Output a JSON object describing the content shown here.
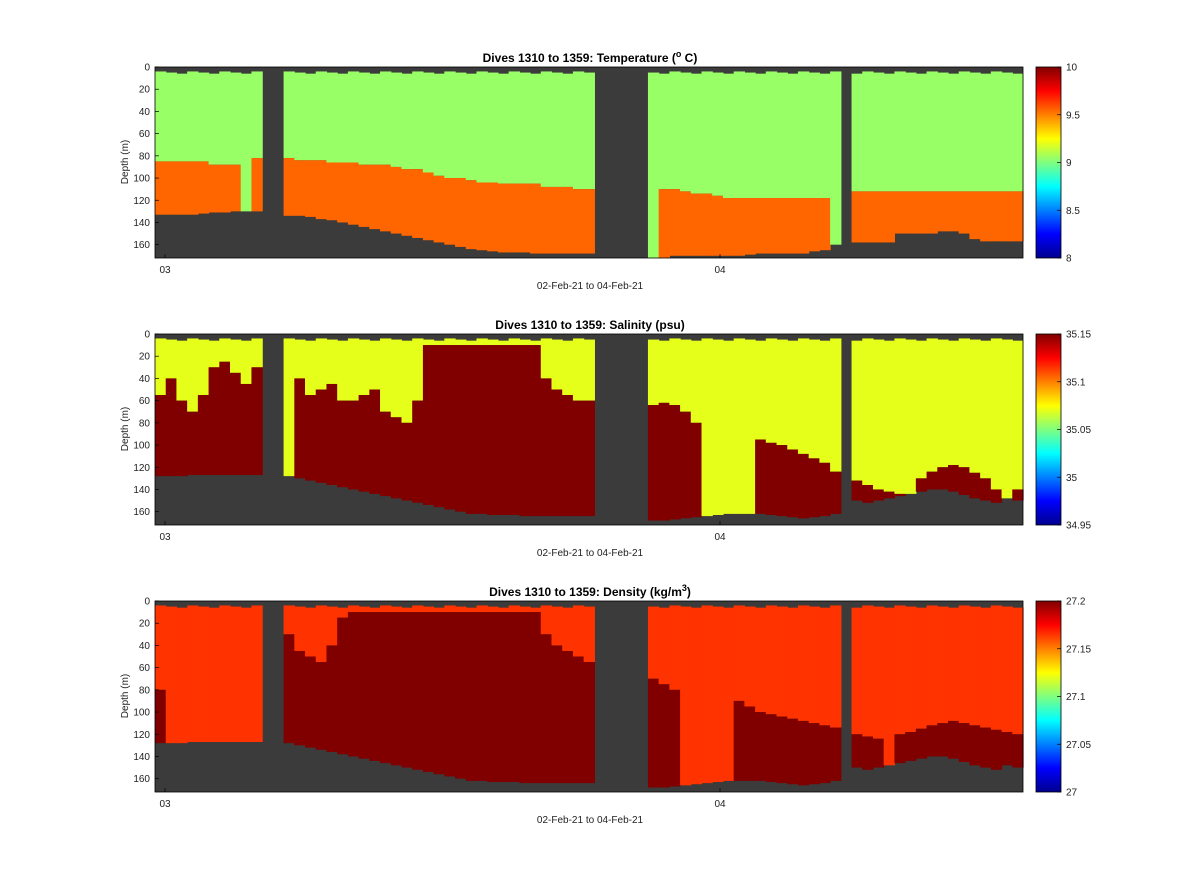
{
  "chart_data": [
    {
      "type": "heatmap",
      "title_text": "Dives 1310 to 1359: Temperature (",
      "title_sup": "o",
      "title_after": " C)",
      "xlabel": "02-Feb-21 to 04-Feb-21",
      "ylabel": "Depth (m)",
      "ylim": [
        0,
        172
      ],
      "y_ticks": [
        "0",
        "20",
        "40",
        "60",
        "80",
        "100",
        "120",
        "140",
        "160"
      ],
      "x_ticks": [
        "03",
        "04"
      ],
      "colorbar": {
        "range": [
          8,
          10
        ],
        "ticks": [
          "10",
          "9.5",
          "9",
          "8.5",
          "8"
        ]
      },
      "surface_value": 9.05,
      "bottom_value": 9.55,
      "cline_depth": [
        85,
        85,
        85,
        88,
        88,
        0,
        82,
        82,
        82,
        84,
        84,
        86,
        86,
        88,
        88,
        90,
        92,
        95,
        98,
        100,
        102,
        104,
        105,
        105,
        105,
        108,
        108,
        110,
        110,
        110,
        0,
        0,
        0,
        110,
        112,
        114,
        116,
        118,
        118,
        118,
        118,
        118,
        118,
        118,
        0,
        112,
        112,
        112,
        112,
        112,
        112,
        112,
        112,
        112,
        112,
        112,
        112
      ],
      "max_depth": [
        133,
        133,
        133,
        133,
        132,
        131,
        131,
        130,
        130,
        130,
        0,
        0,
        134,
        134,
        135,
        137,
        138,
        140,
        142,
        144,
        146,
        148,
        150,
        152,
        154,
        156,
        158,
        160,
        162,
        164,
        165,
        166,
        167,
        167,
        167,
        168,
        168,
        168,
        168,
        168,
        168,
        0,
        0,
        0,
        0,
        0,
        172,
        172,
        170,
        170,
        170,
        170,
        170,
        170,
        170,
        169,
        168,
        168,
        168,
        168,
        168,
        166,
        165,
        160,
        0,
        158,
        158,
        158,
        158,
        150,
        150,
        150,
        150,
        148,
        148,
        150,
        155,
        157,
        157,
        157,
        157
      ]
    },
    {
      "type": "heatmap",
      "title_text": "Dives 1310 to 1359: Salinity (psu)",
      "title_sup": "",
      "title_after": "",
      "xlabel": "02-Feb-21 to 04-Feb-21",
      "ylabel": "Depth (m)",
      "ylim": [
        0,
        172
      ],
      "y_ticks": [
        "0",
        "20",
        "40",
        "60",
        "80",
        "100",
        "120",
        "140",
        "160"
      ],
      "x_ticks": [
        "03",
        "04"
      ],
      "colorbar": {
        "range": [
          34.95,
          35.15
        ],
        "ticks": [
          "35.15",
          "35.1",
          "35.05",
          "35",
          "34.95"
        ]
      },
      "surface_value": 35.07,
      "bottom_value": 35.15,
      "cline_depth": [
        55,
        40,
        60,
        70,
        55,
        30,
        25,
        35,
        45,
        40,
        30,
        30,
        0,
        0,
        40,
        55,
        50,
        45,
        60,
        65,
        60,
        55,
        50,
        70,
        75,
        80,
        60,
        10,
        10,
        10,
        10,
        10,
        10,
        10,
        10,
        10,
        10,
        10,
        10,
        30,
        40,
        50,
        55,
        60,
        60,
        65,
        70,
        75,
        70,
        68,
        66,
        64,
        62,
        64,
        70,
        80,
        0,
        0,
        0,
        0,
        0,
        0,
        95,
        98,
        100,
        104,
        108,
        112,
        116,
        120,
        124,
        128,
        132,
        136,
        140,
        142,
        144,
        0,
        130,
        128,
        124,
        120,
        118,
        120,
        125,
        130,
        140,
        150,
        140,
        120
      ],
      "max_depth": [
        128,
        128,
        128,
        127,
        127,
        127,
        127,
        127,
        127,
        127,
        0,
        0,
        128,
        130,
        132,
        134,
        136,
        138,
        140,
        142,
        144,
        146,
        148,
        150,
        152,
        154,
        156,
        158,
        160,
        162,
        162,
        163,
        163,
        163,
        164,
        164,
        164,
        164,
        164,
        164,
        164,
        0,
        0,
        0,
        0,
        0,
        168,
        168,
        167,
        166,
        165,
        164,
        163,
        162,
        162,
        162,
        162,
        163,
        164,
        165,
        166,
        165,
        164,
        162,
        0,
        150,
        152,
        150,
        148,
        146,
        144,
        142,
        140,
        140,
        142,
        145,
        148,
        150,
        152,
        148,
        150
      ]
    },
    {
      "type": "heatmap",
      "title_text": "Dives 1310 to 1359: Density (kg/m",
      "title_sup": "3",
      "title_after": ")",
      "xlabel": "02-Feb-21 to 04-Feb-21",
      "ylabel": "Depth (m)",
      "ylim": [
        0,
        172
      ],
      "y_ticks": [
        "0",
        "20",
        "40",
        "60",
        "80",
        "100",
        "120",
        "140",
        "160"
      ],
      "x_ticks": [
        "03",
        "04"
      ],
      "colorbar": {
        "range": [
          27,
          27.2
        ],
        "ticks": [
          "27.2",
          "27.15",
          "27.1",
          "27.05",
          "27"
        ]
      },
      "surface_value": 27.165,
      "bottom_value": 27.2,
      "cline_depth": [
        80,
        0,
        0,
        0,
        0,
        0,
        0,
        0,
        0,
        0,
        0,
        0,
        30,
        45,
        50,
        55,
        40,
        20,
        15,
        10,
        10,
        10,
        10,
        10,
        10,
        10,
        10,
        10,
        10,
        10,
        10,
        10,
        10,
        10,
        10,
        10,
        10,
        10,
        30,
        40,
        45,
        50,
        55,
        60,
        65,
        70,
        70,
        70,
        70,
        75,
        80,
        0,
        0,
        0,
        0,
        0,
        0,
        90,
        95,
        100,
        102,
        104,
        106,
        108,
        110,
        112,
        114,
        116,
        118,
        120,
        122,
        124,
        0,
        120,
        118,
        115,
        112,
        110,
        108,
        110,
        112,
        114,
        116,
        118,
        120,
        122
      ],
      "max_depth": [
        128,
        128,
        128,
        127,
        127,
        127,
        127,
        127,
        127,
        127,
        0,
        0,
        128,
        130,
        132,
        134,
        136,
        138,
        140,
        142,
        144,
        146,
        148,
        150,
        152,
        154,
        156,
        158,
        160,
        162,
        162,
        163,
        163,
        163,
        164,
        164,
        164,
        164,
        164,
        164,
        164,
        0,
        0,
        0,
        0,
        0,
        168,
        168,
        167,
        166,
        165,
        164,
        163,
        162,
        162,
        162,
        162,
        163,
        164,
        165,
        166,
        165,
        164,
        162,
        0,
        150,
        152,
        150,
        148,
        146,
        144,
        142,
        140,
        140,
        142,
        145,
        148,
        150,
        152,
        148,
        150
      ]
    }
  ]
}
